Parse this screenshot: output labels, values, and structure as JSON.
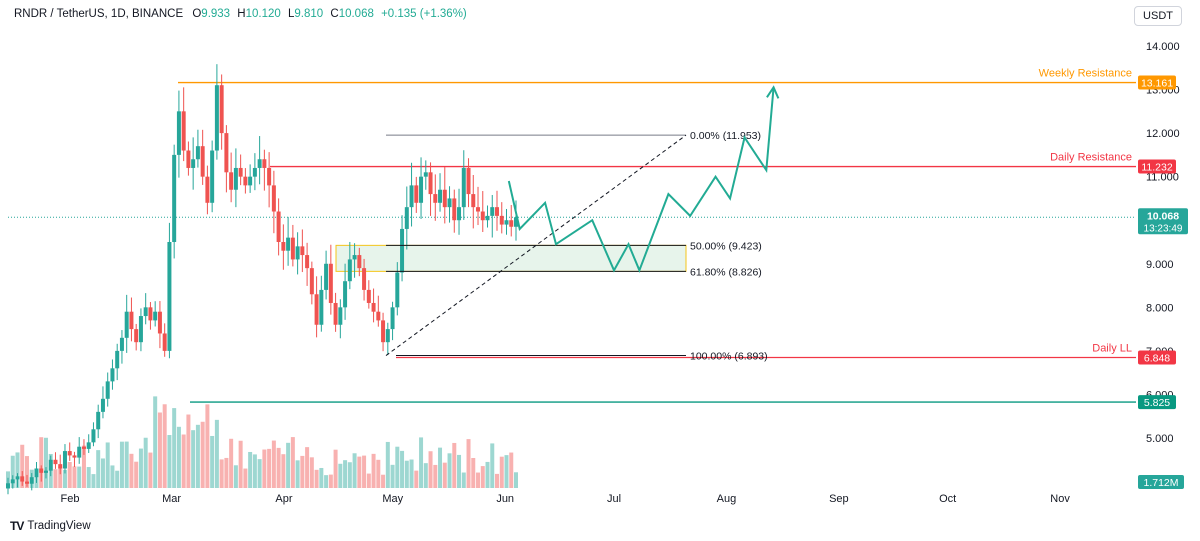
{
  "header": {
    "pair": "RNDR / TetherUS, 1D, BINANCE",
    "open_label": "O",
    "open": "9.933",
    "high_label": "H",
    "high": "10.120",
    "low_label": "L",
    "low": "9.810",
    "close_label": "C",
    "close": "10.068",
    "change": "+0.135 (+1.36%)"
  },
  "currency_button": "USDT",
  "brand": "TradingView",
  "colors": {
    "up": "#26a69a",
    "down": "#ef5350",
    "resistance_orange": "#ff9800",
    "resistance_red": "#f23645",
    "support_teal": "#089981",
    "projection": "#22ab94",
    "fib_zone": "#e6f4ea"
  },
  "chart_data": {
    "type": "candlestick",
    "x_ticks": [
      "Feb",
      "Mar",
      "Apr",
      "May",
      "Jun",
      "Jul",
      "Aug",
      "Sep",
      "Oct",
      "Nov"
    ],
    "y_ticks": [
      "14.000",
      "13.000",
      "12.000",
      "11.000",
      "10.000",
      "9.000",
      "8.000",
      "7.000",
      "6.000",
      "5.000"
    ],
    "ylim": [
      4.3,
      14.6
    ],
    "price_scale": "right",
    "grid": false,
    "series": [
      {
        "name": "RNDR/USDT daily",
        "close": [
          3.96,
          4.05,
          4.12,
          4.0,
          3.95,
          4.1,
          4.3,
          4.2,
          4.25,
          4.5,
          4.4,
          4.3,
          4.7,
          4.6,
          4.55,
          4.8,
          4.75,
          4.9,
          5.2,
          5.6,
          5.9,
          6.3,
          6.6,
          7.0,
          7.3,
          7.9,
          7.5,
          7.2,
          7.8,
          8.0,
          7.7,
          7.9,
          7.4,
          7.0,
          9.5,
          11.5,
          12.5,
          11.6,
          11.2,
          11.4,
          11.7,
          11.0,
          10.4,
          11.6,
          13.1,
          12.0,
          11.1,
          10.7,
          11.2,
          11.0,
          10.8,
          11.0,
          11.2,
          11.4,
          11.2,
          10.8,
          10.2,
          9.5,
          9.3,
          9.6,
          9.1,
          9.4,
          9.2,
          8.9,
          8.3,
          7.6,
          8.4,
          9.0,
          8.1,
          7.6,
          8.0,
          8.6,
          9.1,
          9.2,
          8.9,
          8.4,
          8.1,
          7.9,
          7.7,
          7.2,
          7.5,
          8.0,
          8.8,
          9.8,
          10.3,
          10.8,
          10.4,
          11.0,
          11.1,
          10.6,
          10.4,
          10.7,
          10.3,
          10.5,
          10.0,
          10.3,
          11.2,
          10.6,
          10.3,
          10.2,
          10.0,
          10.1,
          10.3,
          10.1,
          9.9,
          10.0,
          9.85,
          10.068
        ]
      }
    ],
    "volume": {
      "last": "1.712M"
    },
    "horizontal_levels": [
      {
        "label": "Weekly Resistance",
        "value": 13.161,
        "tag": "13.161",
        "color": "#ff9800"
      },
      {
        "label": "Daily Resistance",
        "value": 11.232,
        "tag": "11.232",
        "color": "#f23645"
      },
      {
        "label": "Daily LL",
        "value": 6.848,
        "tag": "6.848",
        "color": "#f23645"
      },
      {
        "label": "",
        "value": 5.825,
        "tag": "5.825",
        "color": "#089981"
      }
    ],
    "current_price": {
      "value": 10.068,
      "tag": "10.068",
      "countdown": "13:23:49"
    },
    "fibonacci": [
      {
        "label": "0.00% (11.953)",
        "value": 11.953
      },
      {
        "label": "50.00% (9.423)",
        "value": 9.423
      },
      {
        "label": "61.80% (8.826)",
        "value": 8.826
      },
      {
        "label": "100.00% (6.893)",
        "value": 6.893
      }
    ],
    "projection_path": [
      {
        "date": "Jun 2",
        "value": 10.9
      },
      {
        "date": "Jun 5",
        "value": 9.8
      },
      {
        "date": "Jun 12",
        "value": 10.4
      },
      {
        "date": "Jun 15",
        "value": 9.45
      },
      {
        "date": "Jun 25",
        "value": 10.0
      },
      {
        "date": "Jul 1",
        "value": 8.85
      },
      {
        "date": "Jul 5",
        "value": 9.45
      },
      {
        "date": "Jul 8",
        "value": 8.85
      },
      {
        "date": "Jul 16",
        "value": 10.6
      },
      {
        "date": "Jul 22",
        "value": 10.1
      },
      {
        "date": "Jul 29",
        "value": 11.0
      },
      {
        "date": "Aug 2",
        "value": 10.5
      },
      {
        "date": "Aug 6",
        "value": 11.9
      },
      {
        "date": "Aug 12",
        "value": 11.15
      },
      {
        "date": "Aug 14",
        "value": 13.05
      }
    ]
  }
}
